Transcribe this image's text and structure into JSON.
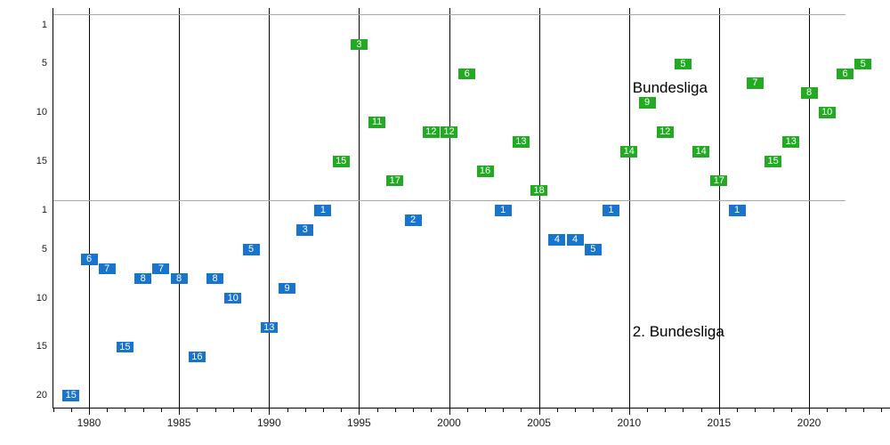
{
  "chart_data": {
    "type": "scatter",
    "title": "",
    "description": "Season-by-season final league positions shown as numbered boxes; upper panel Bundesliga, lower panel 2. Bundesliga",
    "colors": {
      "bundesliga_green": "#22ab22",
      "zweite_liga_blue": "#1874cd",
      "grid": "#000000",
      "section_line": "#a9a9a9",
      "axis_text": "#1a1a1a",
      "box_text": "#ffffff"
    },
    "x_axis": {
      "tick_years": [
        1980,
        1985,
        1990,
        1995,
        2000,
        2005,
        2010,
        2015,
        2020
      ],
      "tick_labels": [
        "1980",
        "1985",
        "1990",
        "1995",
        "2000",
        "2005",
        "2010",
        "2015",
        "2020"
      ],
      "minor_tick_start": 1978,
      "minor_tick_end": 2024
    },
    "sections": [
      {
        "label": "Bundesliga",
        "ticks": [
          1,
          5,
          10,
          15
        ],
        "max_position": 18
      },
      {
        "label": "2. Bundesliga",
        "ticks": [
          1,
          5,
          10,
          15,
          20
        ],
        "max_position": 20
      }
    ],
    "annotations": [
      {
        "text": "Bundesliga",
        "section": 0,
        "year": 2010.2,
        "position": 7.5
      },
      {
        "text": "2. Bundesliga",
        "section": 1,
        "year": 2010.2,
        "position": 13.5
      }
    ],
    "series": [
      {
        "name": "Bundesliga",
        "color": "#22ab22",
        "section": 0,
        "points": [
          {
            "year": 1994,
            "position": 15
          },
          {
            "year": 1995,
            "position": 3
          },
          {
            "year": 1996,
            "position": 11
          },
          {
            "year": 1997,
            "position": 17
          },
          {
            "year": 1999,
            "position": 12
          },
          {
            "year": 2000,
            "position": 12
          },
          {
            "year": 2001,
            "position": 6
          },
          {
            "year": 2002,
            "position": 16
          },
          {
            "year": 2004,
            "position": 13
          },
          {
            "year": 2005,
            "position": 18
          },
          {
            "year": 2010,
            "position": 14
          },
          {
            "year": 2011,
            "position": 9
          },
          {
            "year": 2012,
            "position": 12
          },
          {
            "year": 2013,
            "position": 5
          },
          {
            "year": 2014,
            "position": 14
          },
          {
            "year": 2015,
            "position": 17
          },
          {
            "year": 2017,
            "position": 7
          },
          {
            "year": 2018,
            "position": 15
          },
          {
            "year": 2019,
            "position": 13
          },
          {
            "year": 2020,
            "position": 8
          },
          {
            "year": 2021,
            "position": 10
          },
          {
            "year": 2022,
            "position": 6
          },
          {
            "year": 2023,
            "position": 5
          }
        ]
      },
      {
        "name": "2. Bundesliga",
        "color": "#1874cd",
        "section": 1,
        "points": [
          {
            "year": 1979,
            "position": 15,
            "plot_position": 20
          },
          {
            "year": 1980,
            "position": 6
          },
          {
            "year": 1981,
            "position": 7
          },
          {
            "year": 1982,
            "position": 15
          },
          {
            "year": 1983,
            "position": 8
          },
          {
            "year": 1984,
            "position": 7
          },
          {
            "year": 1985,
            "position": 8
          },
          {
            "year": 1986,
            "position": 16
          },
          {
            "year": 1987,
            "position": 8
          },
          {
            "year": 1988,
            "position": 10
          },
          {
            "year": 1989,
            "position": 5
          },
          {
            "year": 1990,
            "position": 13
          },
          {
            "year": 1991,
            "position": 9
          },
          {
            "year": 1992,
            "position": 3
          },
          {
            "year": 1993,
            "position": 1
          },
          {
            "year": 1998,
            "position": 2
          },
          {
            "year": 2003,
            "position": 1
          },
          {
            "year": 2006,
            "position": 4
          },
          {
            "year": 2007,
            "position": 4
          },
          {
            "year": 2008,
            "position": 5
          },
          {
            "year": 2009,
            "position": 1
          },
          {
            "year": 2016,
            "position": 1
          }
        ]
      }
    ]
  }
}
